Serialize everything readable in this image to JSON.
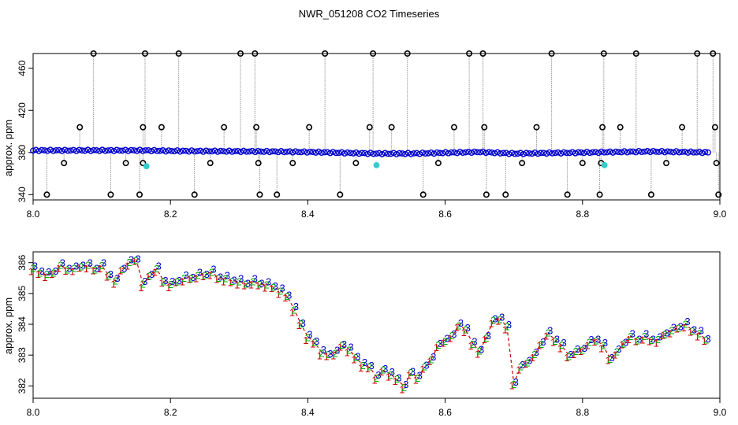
{
  "title": "NWR_051208  CO2 Timeseries",
  "colors": {
    "points": "#0000cc",
    "lines": "#9a9a9a",
    "outliers": "#000000",
    "flagged": "#33cccc",
    "accent_red": "#cc0000",
    "green": "#00aa00",
    "blue": "#0000cc"
  },
  "chart_data": [
    {
      "type": "scatter",
      "ylabel": "approx. ppm",
      "xlim": [
        8.0,
        9.0
      ],
      "ylim": [
        335,
        474
      ],
      "xticks": [
        8.0,
        8.2,
        8.4,
        8.6,
        8.8,
        9.0
      ],
      "yticks": [
        340,
        380,
        420,
        460
      ],
      "baseline": [
        [
          8.0,
          382
        ],
        [
          8.16,
          382
        ],
        [
          8.2,
          381.5
        ],
        [
          8.33,
          381
        ],
        [
          8.4,
          380.5
        ],
        [
          8.5,
          379
        ],
        [
          8.55,
          379
        ],
        [
          8.65,
          380.5
        ],
        [
          8.7,
          379
        ],
        [
          8.8,
          380
        ],
        [
          8.9,
          381
        ],
        [
          8.99,
          380
        ]
      ],
      "outliers": [
        {
          "x": 8.02,
          "y": 340
        },
        {
          "x": 8.045,
          "y": 370
        },
        {
          "x": 8.068,
          "y": 404
        },
        {
          "x": 8.088,
          "y": 474
        },
        {
          "x": 8.113,
          "y": 340
        },
        {
          "x": 8.135,
          "y": 370
        },
        {
          "x": 8.155,
          "y": 340
        },
        {
          "x": 8.16,
          "y": 370
        },
        {
          "x": 8.16,
          "y": 404
        },
        {
          "x": 8.163,
          "y": 474
        },
        {
          "x": 8.187,
          "y": 404
        },
        {
          "x": 8.212,
          "y": 474
        },
        {
          "x": 8.235,
          "y": 340
        },
        {
          "x": 8.258,
          "y": 370
        },
        {
          "x": 8.278,
          "y": 404
        },
        {
          "x": 8.302,
          "y": 474
        },
        {
          "x": 8.323,
          "y": 474
        },
        {
          "x": 8.325,
          "y": 404
        },
        {
          "x": 8.328,
          "y": 370
        },
        {
          "x": 8.33,
          "y": 340
        },
        {
          "x": 8.355,
          "y": 340
        },
        {
          "x": 8.378,
          "y": 370
        },
        {
          "x": 8.402,
          "y": 404
        },
        {
          "x": 8.425,
          "y": 474
        },
        {
          "x": 8.447,
          "y": 340
        },
        {
          "x": 8.47,
          "y": 370
        },
        {
          "x": 8.49,
          "y": 404
        },
        {
          "x": 8.495,
          "y": 474
        },
        {
          "x": 8.522,
          "y": 404
        },
        {
          "x": 8.545,
          "y": 474
        },
        {
          "x": 8.568,
          "y": 340
        },
        {
          "x": 8.59,
          "y": 370
        },
        {
          "x": 8.613,
          "y": 404
        },
        {
          "x": 8.635,
          "y": 474
        },
        {
          "x": 8.655,
          "y": 474
        },
        {
          "x": 8.657,
          "y": 404
        },
        {
          "x": 8.66,
          "y": 340
        },
        {
          "x": 8.688,
          "y": 340
        },
        {
          "x": 8.712,
          "y": 370
        },
        {
          "x": 8.733,
          "y": 404
        },
        {
          "x": 8.755,
          "y": 474
        },
        {
          "x": 8.778,
          "y": 340
        },
        {
          "x": 8.8,
          "y": 370
        },
        {
          "x": 8.825,
          "y": 340
        },
        {
          "x": 8.827,
          "y": 370
        },
        {
          "x": 8.829,
          "y": 404
        },
        {
          "x": 8.831,
          "y": 474
        },
        {
          "x": 8.855,
          "y": 404
        },
        {
          "x": 8.878,
          "y": 474
        },
        {
          "x": 8.9,
          "y": 340
        },
        {
          "x": 8.922,
          "y": 370
        },
        {
          "x": 8.945,
          "y": 404
        },
        {
          "x": 8.967,
          "y": 474
        },
        {
          "x": 8.99,
          "y": 474
        },
        {
          "x": 8.993,
          "y": 404
        },
        {
          "x": 8.995,
          "y": 370
        },
        {
          "x": 8.998,
          "y": 340
        }
      ],
      "flagged": [
        {
          "x": 8.165,
          "y": 367
        },
        {
          "x": 8.5,
          "y": 368
        },
        {
          "x": 8.832,
          "y": 368
        }
      ]
    },
    {
      "type": "line",
      "ylabel": "approx. ppm",
      "xlim": [
        8.0,
        9.0
      ],
      "ylim": [
        381.6,
        386.35
      ],
      "xticks": [
        8.0,
        8.2,
        8.4,
        8.6,
        8.8,
        9.0
      ],
      "yticks": [
        382,
        383,
        384,
        385,
        386
      ],
      "series_labels": [
        "1",
        "2",
        "3"
      ],
      "x": [
        8.0,
        8.01,
        8.02,
        8.03,
        8.04,
        8.05,
        8.06,
        8.07,
        8.08,
        8.09,
        8.1,
        8.11,
        8.12,
        8.13,
        8.14,
        8.15,
        8.16,
        8.17,
        8.18,
        8.19,
        8.2,
        8.21,
        8.22,
        8.23,
        8.24,
        8.25,
        8.26,
        8.27,
        8.28,
        8.29,
        8.3,
        8.31,
        8.32,
        8.33,
        8.34,
        8.35,
        8.36,
        8.37,
        8.38,
        8.39,
        8.4,
        8.41,
        8.42,
        8.43,
        8.44,
        8.45,
        8.46,
        8.47,
        8.48,
        8.49,
        8.5,
        8.51,
        8.52,
        8.53,
        8.54,
        8.55,
        8.56,
        8.57,
        8.58,
        8.59,
        8.6,
        8.61,
        8.62,
        8.63,
        8.64,
        8.65,
        8.66,
        8.67,
        8.68,
        8.69,
        8.7,
        8.71,
        8.72,
        8.73,
        8.74,
        8.75,
        8.76,
        8.77,
        8.78,
        8.79,
        8.8,
        8.81,
        8.82,
        8.83,
        8.84,
        8.85,
        8.86,
        8.87,
        8.88,
        8.89,
        8.9,
        8.91,
        8.92,
        8.93,
        8.94,
        8.95,
        8.96,
        8.97,
        8.98
      ],
      "values": [
        385.8,
        385.7,
        385.6,
        385.7,
        385.9,
        385.8,
        385.8,
        385.9,
        385.9,
        385.8,
        385.9,
        385.6,
        385.4,
        385.8,
        386.0,
        386.1,
        385.3,
        385.6,
        385.8,
        385.4,
        385.3,
        385.4,
        385.5,
        385.5,
        385.6,
        385.6,
        385.7,
        385.5,
        385.5,
        385.4,
        385.4,
        385.3,
        385.4,
        385.3,
        385.3,
        385.2,
        385.1,
        384.9,
        384.5,
        384.0,
        383.6,
        383.4,
        383.1,
        383.0,
        383.1,
        383.3,
        383.2,
        382.9,
        382.7,
        382.6,
        382.3,
        382.5,
        382.4,
        382.2,
        382.0,
        382.4,
        382.3,
        382.6,
        382.9,
        383.3,
        383.5,
        383.6,
        384.0,
        383.8,
        383.4,
        383.1,
        383.6,
        384.1,
        384.2,
        383.9,
        382.1,
        382.6,
        382.8,
        383.0,
        383.4,
        383.7,
        383.5,
        383.3,
        383.0,
        383.1,
        383.2,
        383.4,
        383.5,
        383.3,
        382.9,
        383.1,
        383.4,
        383.6,
        383.5,
        383.6,
        383.5,
        383.5,
        383.7,
        383.8,
        383.9,
        384.0,
        383.8,
        383.7,
        383.5
      ]
    }
  ]
}
